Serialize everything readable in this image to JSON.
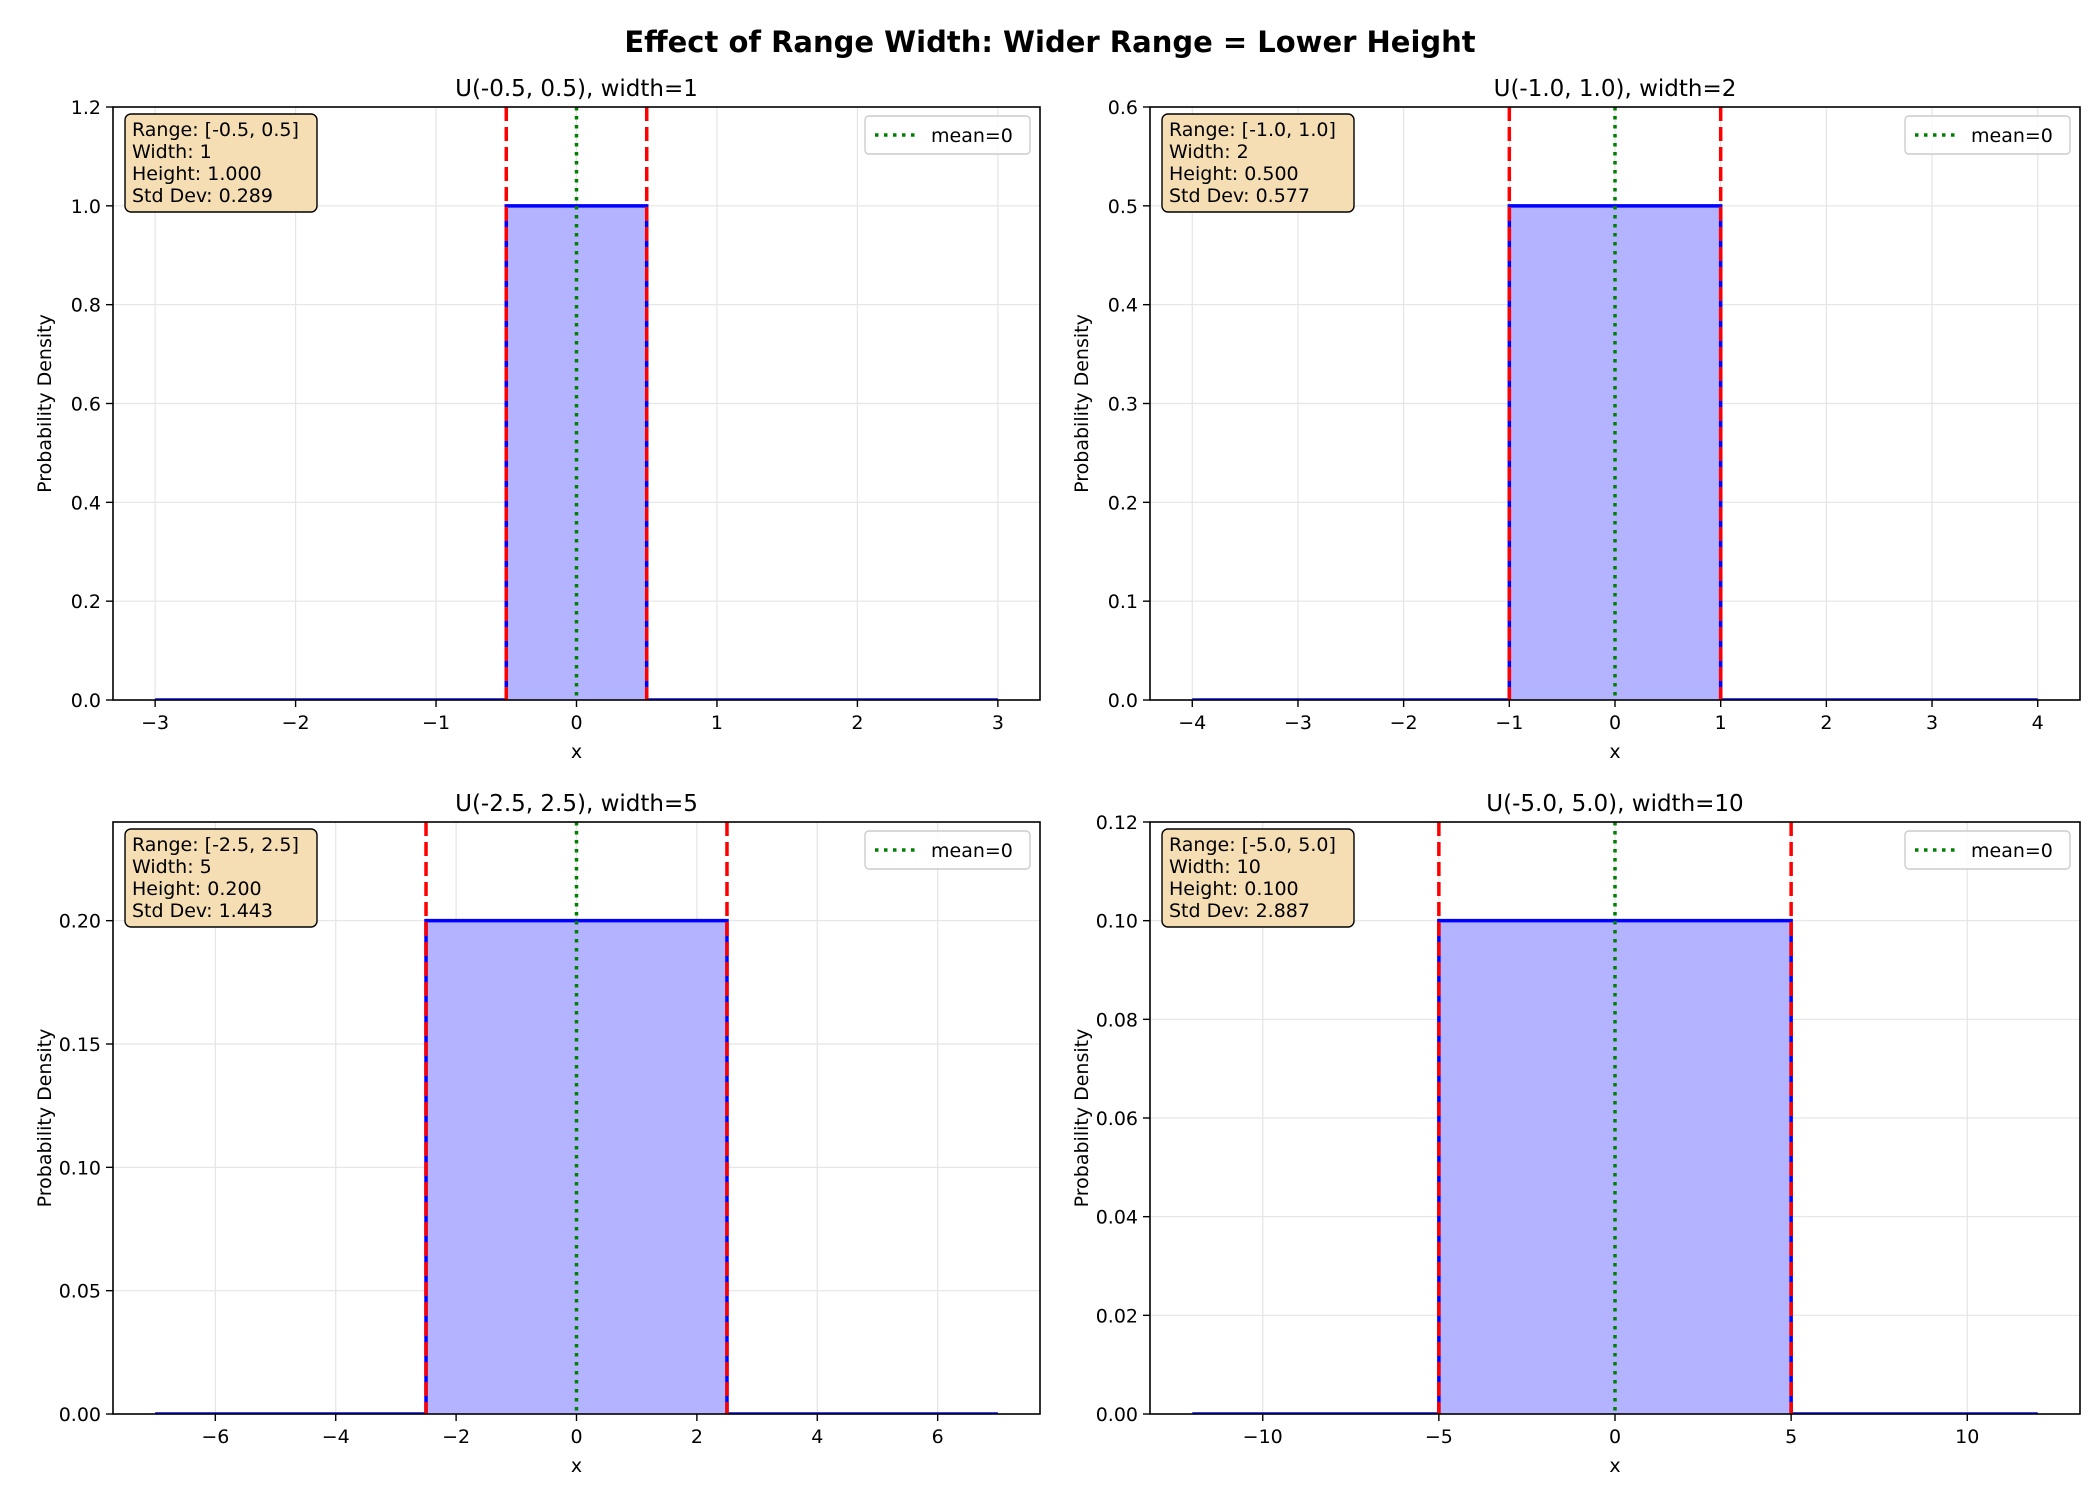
{
  "figure": {
    "suptitle": "Effect of Range Width: Wider Range = Lower Height"
  },
  "colors": {
    "pdf_line": "#0000ff",
    "pdf_fill": "#b3b3ff",
    "bound_line": "#ff0000",
    "mean_line": "#008000",
    "grid": "#e5e5e5",
    "info_box_fill": "#f5deb3"
  },
  "chart_data": [
    {
      "type": "area",
      "title": "U(-0.5, 0.5), width=1",
      "xlabel": "x",
      "ylabel": "Probability Density",
      "xlim": [
        -3.3,
        3.3
      ],
      "ylim": [
        0,
        1.2
      ],
      "xticks": [
        -3,
        -2,
        -1,
        0,
        1,
        2,
        3
      ],
      "yticks": [
        0.0,
        0.2,
        0.4,
        0.6,
        0.8,
        1.0,
        1.2
      ],
      "ytick_labels": [
        "0.0",
        "0.2",
        "0.4",
        "0.6",
        "0.8",
        "1.0",
        "1.2"
      ],
      "series": [
        {
          "x": [
            -3,
            -0.5,
            -0.5,
            0.5,
            0.5,
            3
          ],
          "y": [
            0,
            0,
            1.0,
            1.0,
            0,
            0
          ]
        }
      ],
      "bounds": [
        -0.5,
        0.5
      ],
      "mean": 0,
      "legend": {
        "label": "mean=0",
        "position": "top-right"
      },
      "info_box": [
        "Range: [-0.5, 0.5]",
        "Width: 1",
        "Height: 1.000",
        "Std Dev: 0.289"
      ],
      "grid": true
    },
    {
      "type": "area",
      "title": "U(-1.0, 1.0), width=2",
      "xlabel": "x",
      "ylabel": "Probability Density",
      "xlim": [
        -4.4,
        4.4
      ],
      "ylim": [
        0,
        0.6
      ],
      "xticks": [
        -4,
        -3,
        -2,
        -1,
        0,
        1,
        2,
        3,
        4
      ],
      "yticks": [
        0.0,
        0.1,
        0.2,
        0.3,
        0.4,
        0.5,
        0.6
      ],
      "ytick_labels": [
        "0.0",
        "0.1",
        "0.2",
        "0.3",
        "0.4",
        "0.5",
        "0.6"
      ],
      "series": [
        {
          "x": [
            -4,
            -1,
            -1,
            1,
            1,
            4
          ],
          "y": [
            0,
            0,
            0.5,
            0.5,
            0,
            0
          ]
        }
      ],
      "bounds": [
        -1.0,
        1.0
      ],
      "mean": 0,
      "legend": {
        "label": "mean=0",
        "position": "top-right"
      },
      "info_box": [
        "Range: [-1.0, 1.0]",
        "Width: 2",
        "Height: 0.500",
        "Std Dev: 0.577"
      ],
      "grid": true
    },
    {
      "type": "area",
      "title": "U(-2.5, 2.5), width=5",
      "xlabel": "x",
      "ylabel": "Probability Density",
      "xlim": [
        -7.7,
        7.7
      ],
      "ylim": [
        0,
        0.24
      ],
      "xticks": [
        -6,
        -4,
        -2,
        0,
        2,
        4,
        6
      ],
      "yticks": [
        0.0,
        0.05,
        0.1,
        0.15,
        0.2
      ],
      "ytick_labels": [
        "0.00",
        "0.05",
        "0.10",
        "0.15",
        "0.20"
      ],
      "series": [
        {
          "x": [
            -7,
            -2.5,
            -2.5,
            2.5,
            2.5,
            7
          ],
          "y": [
            0,
            0,
            0.2,
            0.2,
            0,
            0
          ]
        }
      ],
      "bounds": [
        -2.5,
        2.5
      ],
      "mean": 0,
      "legend": {
        "label": "mean=0",
        "position": "top-right"
      },
      "info_box": [
        "Range: [-2.5, 2.5]",
        "Width: 5",
        "Height: 0.200",
        "Std Dev: 1.443"
      ],
      "grid": true
    },
    {
      "type": "area",
      "title": "U(-5.0, 5.0), width=10",
      "xlabel": "x",
      "ylabel": "Probability Density",
      "xlim": [
        -13.2,
        13.2
      ],
      "ylim": [
        0,
        0.12
      ],
      "xticks": [
        -10,
        -5,
        0,
        5,
        10
      ],
      "yticks": [
        0.0,
        0.02,
        0.04,
        0.06,
        0.08,
        0.1,
        0.12
      ],
      "ytick_labels": [
        "0.00",
        "0.02",
        "0.04",
        "0.06",
        "0.08",
        "0.10",
        "0.12"
      ],
      "series": [
        {
          "x": [
            -12,
            -5,
            -5,
            5,
            5,
            12
          ],
          "y": [
            0,
            0,
            0.1,
            0.1,
            0,
            0
          ]
        }
      ],
      "bounds": [
        -5.0,
        5.0
      ],
      "mean": 0,
      "legend": {
        "label": "mean=0",
        "position": "top-right"
      },
      "info_box": [
        "Range: [-5.0, 5.0]",
        "Width: 10",
        "Height: 0.100",
        "Std Dev: 2.887"
      ],
      "grid": true
    }
  ]
}
